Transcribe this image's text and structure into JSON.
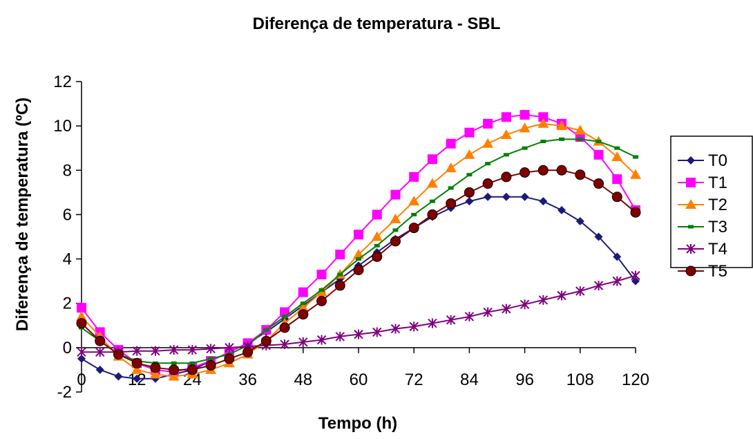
{
  "chart_data": {
    "type": "line",
    "title": "Diferença de temperatura - SBL",
    "xlabel": "Tempo (h)",
    "ylabel": "Diferença de temperatura (ºC)",
    "xlim": [
      0,
      120
    ],
    "ylim": [
      -2,
      12
    ],
    "x_ticks": [
      "0",
      "12",
      "24",
      "36",
      "48",
      "60",
      "72",
      "84",
      "96",
      "108",
      "120"
    ],
    "y_ticks": [
      "-2",
      "0",
      "2",
      "4",
      "6",
      "8",
      "10",
      "12"
    ],
    "grid": false,
    "legend_position": "right",
    "x": [
      0,
      4,
      8,
      12,
      16,
      20,
      24,
      28,
      32,
      36,
      40,
      44,
      48,
      52,
      56,
      60,
      64,
      68,
      72,
      76,
      80,
      84,
      88,
      92,
      96,
      100,
      104,
      108,
      112,
      116,
      120
    ],
    "series": [
      {
        "name": "T0",
        "color": "#1a1a7a",
        "marker": "diamond",
        "values": [
          -0.5,
          -1.0,
          -1.3,
          -1.4,
          -1.4,
          -1.2,
          -1.0,
          -0.6,
          -0.2,
          0.2,
          0.7,
          1.3,
          1.9,
          2.5,
          3.1,
          3.7,
          4.3,
          4.9,
          5.4,
          5.9,
          6.3,
          6.6,
          6.8,
          6.8,
          6.8,
          6.6,
          6.2,
          5.7,
          5.0,
          4.1,
          3.0
        ]
      },
      {
        "name": "T1",
        "color": "#ff00ff",
        "marker": "square",
        "values": [
          1.8,
          0.7,
          -0.1,
          -0.7,
          -1.0,
          -1.1,
          -0.9,
          -0.6,
          -0.2,
          0.2,
          0.8,
          1.6,
          2.5,
          3.3,
          4.2,
          5.1,
          6.0,
          6.9,
          7.7,
          8.5,
          9.2,
          9.7,
          10.1,
          10.4,
          10.5,
          10.4,
          10.1,
          9.5,
          8.7,
          7.6,
          6.2
        ]
      },
      {
        "name": "T2",
        "color": "#ff8000",
        "marker": "triangle",
        "values": [
          1.4,
          0.5,
          -0.4,
          -1.0,
          -1.2,
          -1.3,
          -1.2,
          -1.0,
          -0.7,
          -0.3,
          0.3,
          1.1,
          1.8,
          2.5,
          3.3,
          4.2,
          5.0,
          5.8,
          6.6,
          7.4,
          8.1,
          8.7,
          9.2,
          9.6,
          9.9,
          10.1,
          10.0,
          9.8,
          9.3,
          8.6,
          7.8
        ]
      },
      {
        "name": "T3",
        "color": "#008000",
        "marker": "dash",
        "values": [
          0.9,
          0.3,
          -0.3,
          -0.6,
          -0.7,
          -0.7,
          -0.7,
          -0.5,
          -0.3,
          0.1,
          0.8,
          1.4,
          2.0,
          2.6,
          3.3,
          4.0,
          4.6,
          5.3,
          6.0,
          6.6,
          7.2,
          7.8,
          8.3,
          8.7,
          9.0,
          9.3,
          9.4,
          9.4,
          9.3,
          9.0,
          8.6
        ]
      },
      {
        "name": "T4",
        "color": "#7f007f",
        "marker": "star",
        "values": [
          -0.2,
          -0.2,
          -0.2,
          -0.15,
          -0.15,
          -0.1,
          -0.1,
          -0.05,
          0.0,
          0.05,
          0.1,
          0.15,
          0.25,
          0.35,
          0.5,
          0.6,
          0.7,
          0.85,
          0.95,
          1.1,
          1.25,
          1.4,
          1.6,
          1.75,
          1.95,
          2.15,
          2.35,
          2.55,
          2.8,
          3.0,
          3.25
        ]
      },
      {
        "name": "T5",
        "color": "#800000",
        "marker": "circle",
        "values": [
          1.1,
          0.3,
          -0.3,
          -0.7,
          -0.9,
          -1.0,
          -1.0,
          -0.8,
          -0.5,
          -0.2,
          0.3,
          0.9,
          1.5,
          2.1,
          2.8,
          3.5,
          4.1,
          4.8,
          5.4,
          6.0,
          6.5,
          7.0,
          7.4,
          7.7,
          7.9,
          8.0,
          8.0,
          7.8,
          7.4,
          6.8,
          6.1
        ]
      }
    ]
  }
}
